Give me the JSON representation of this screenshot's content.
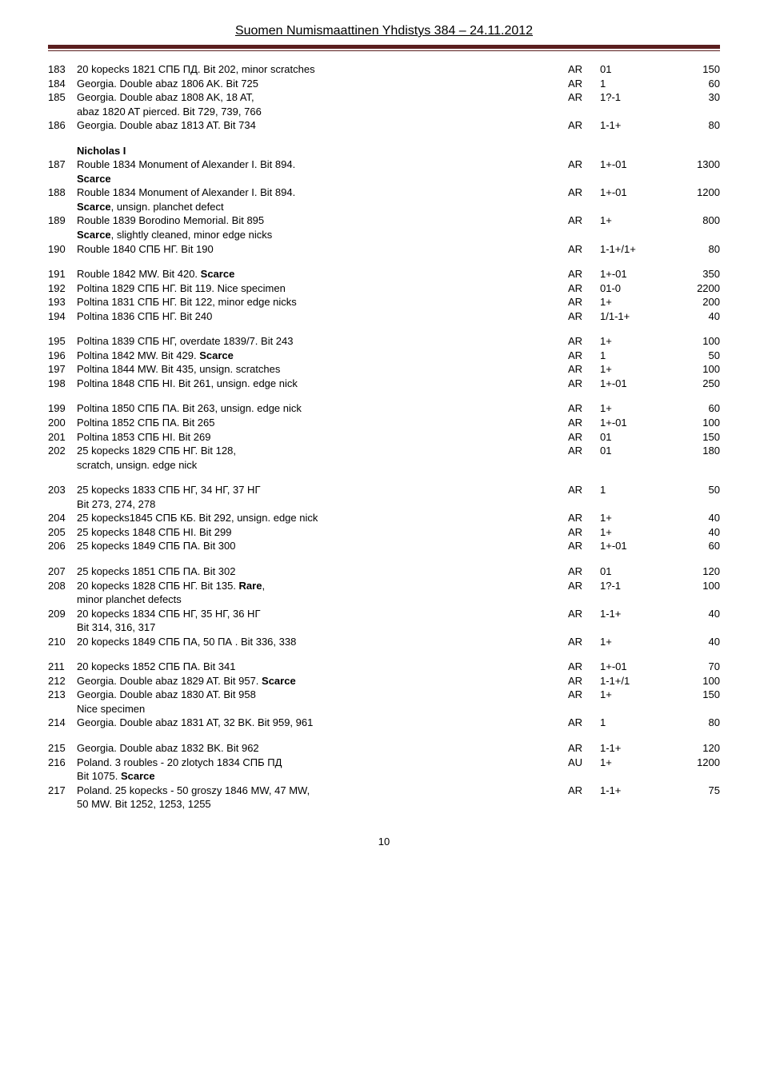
{
  "header": "Suomen Numismaattinen Yhdistys 384 – 24.11.2012",
  "page_number": "10",
  "colors": {
    "bar": "#5b1f1f",
    "text": "#000000",
    "bg": "#ffffff"
  },
  "section_heading": "Nicholas I",
  "rows": [
    {
      "n": "183",
      "d": "20 kopecks 1821 СПБ ПД. Bit 202, minor scratches",
      "m": "AR",
      "g": "01",
      "p": "150"
    },
    {
      "n": "184",
      "d": "Georgia. Double abaz 1806 AK. Bit 725",
      "m": "AR",
      "g": "1",
      "p": "60"
    },
    {
      "n": "185",
      "d": "Georgia. Double abaz 1808 AK, 18 AT,",
      "m": "AR",
      "g": "1?-1",
      "p": "30",
      "d2": "abaz 1820 AT pierced. Bit 729, 739, 766"
    },
    {
      "n": "186",
      "d": "Georgia. Double abaz 1813 AT. Bit 734",
      "m": "AR",
      "g": "1-1+",
      "p": "80"
    },
    {
      "gap": true
    },
    {
      "section": true
    },
    {
      "n": "187",
      "d": "Rouble 1834 Monument of Alexander I. Bit 894.",
      "m": "AR",
      "g": "1+-01",
      "p": "1300",
      "d2_html": "<span class='bold'>Scarce</span>"
    },
    {
      "n": "188",
      "d": "Rouble 1834 Monument of Alexander I. Bit 894.",
      "m": "AR",
      "g": "1+-01",
      "p": "1200",
      "d2_html": "<span class='bold'>Scarce</span>, unsign. planchet defect"
    },
    {
      "n": "189",
      "d": "Rouble 1839 Borodino Memorial. Bit 895",
      "m": "AR",
      "g": "1+",
      "p": "800",
      "d2_html": "<span class='bold'>Scarce</span>, slightly cleaned, minor edge nicks"
    },
    {
      "n": "190",
      "d": "Rouble 1840 СПБ НГ. Bit 190",
      "m": "AR",
      "g": "1-1+/1+",
      "p": "80"
    },
    {
      "gap": true
    },
    {
      "n": "191",
      "d_html": "Rouble 1842 MW. Bit 420. <span class='bold'>Scarce</span>",
      "m": "AR",
      "g": "1+-01",
      "p": "350"
    },
    {
      "n": "192",
      "d": "Poltina 1829 СПБ НГ. Bit 119. Nice specimen",
      "m": "AR",
      "g": "01-0",
      "p": "2200"
    },
    {
      "n": "193",
      "d": "Poltina 1831 СПБ НГ. Bit 122, minor edge nicks",
      "m": "AR",
      "g": "1+",
      "p": "200"
    },
    {
      "n": "194",
      "d": "Poltina 1836 СПБ НГ. Bit 240",
      "m": "AR",
      "g": "1/1-1+",
      "p": "40"
    },
    {
      "gap": true
    },
    {
      "n": "195",
      "d": "Poltina 1839 СПБ НГ, overdate 1839/7. Bit 243",
      "m": "AR",
      "g": "1+",
      "p": "100"
    },
    {
      "n": "196",
      "d_html": "Poltina 1842 MW. Bit 429. <span class='bold'>Scarce</span>",
      "m": "AR",
      "g": "1",
      "p": "50"
    },
    {
      "n": "197",
      "d": "Poltina 1844 MW. Bit 435, unsign. scratches",
      "m": "AR",
      "g": "1+",
      "p": "100"
    },
    {
      "n": "198",
      "d": "Poltina 1848 СПБ НI. Bit 261, unsign. edge nick",
      "m": "AR",
      "g": "1+-01",
      "p": "250"
    },
    {
      "gap": true
    },
    {
      "n": "199",
      "d": "Poltina 1850 СПБ ПА. Bit 263, unsign. edge nick",
      "m": "AR",
      "g": "1+",
      "p": "60"
    },
    {
      "n": "200",
      "d": "Poltina 1852 СПБ ПА. Bit 265",
      "m": "AR",
      "g": "1+-01",
      "p": "100"
    },
    {
      "n": "201",
      "d": "Poltina 1853 СПБ НI. Bit 269",
      "m": "AR",
      "g": "01",
      "p": "150"
    },
    {
      "n": "202",
      "d": "25 kopecks 1829 СПБ НГ. Bit 128,",
      "m": "AR",
      "g": "01",
      "p": "180",
      "d2": "scratch, unsign. edge nick"
    },
    {
      "gap": true
    },
    {
      "n": "203",
      "d": "25 kopecks 1833 СПБ НГ, 34 НГ, 37 НГ",
      "m": "AR",
      "g": "1",
      "p": "50",
      "d2": "Bit 273, 274, 278"
    },
    {
      "n": "204",
      "d": "25 kopecks1845 СПБ КБ. Bit 292, unsign. edge nick",
      "m": "AR",
      "g": "1+",
      "p": "40"
    },
    {
      "n": "205",
      "d": "25 kopecks 1848 СПБ НI. Bit 299",
      "m": "AR",
      "g": "1+",
      "p": "40"
    },
    {
      "n": "206",
      "d": "25 kopecks 1849 СПБ ПА. Bit 300",
      "m": "AR",
      "g": "1+-01",
      "p": "60"
    },
    {
      "gap": true
    },
    {
      "n": "207",
      "d": "25 kopecks 1851 СПБ ПА. Bit 302",
      "m": "AR",
      "g": "01",
      "p": "120"
    },
    {
      "n": "208",
      "d_html": "20 kopecks 1828 СПБ НГ. Bit 135. <span class='bold'>Rare</span>,",
      "m": "AR",
      "g": "1?-1",
      "p": "100",
      "d2": "minor planchet defects"
    },
    {
      "n": "209",
      "d": "20 kopecks 1834 СПБ НГ, 35 НГ, 36 НГ",
      "m": "AR",
      "g": "1-1+",
      "p": "40",
      "d2": "Bit 314, 316, 317"
    },
    {
      "n": "210",
      "d": "20 kopecks 1849 СПБ ПА, 50 ПА . Bit 336, 338",
      "m": "AR",
      "g": "1+",
      "p": "40"
    },
    {
      "gap": true
    },
    {
      "n": "211",
      "d": "20 kopecks 1852 СПБ ПА. Bit 341",
      "m": "AR",
      "g": "1+-01",
      "p": "70"
    },
    {
      "n": "212",
      "d_html": "Georgia. Double abaz 1829 AT. Bit 957. <span class='bold'>Scarce</span>",
      "m": "AR",
      "g": "1-1+/1",
      "p": "100"
    },
    {
      "n": "213",
      "d": "Georgia. Double abaz 1830 AT. Bit 958",
      "m": "AR",
      "g": "1+",
      "p": "150",
      "d2": "Nice specimen"
    },
    {
      "n": "214",
      "d": "Georgia. Double abaz 1831 AT, 32 BK. Bit 959, 961",
      "m": "AR",
      "g": "1",
      "p": "80"
    },
    {
      "gap": true
    },
    {
      "n": "215",
      "d": "Georgia. Double abaz 1832 BK. Bit 962",
      "m": "AR",
      "g": "1-1+",
      "p": "120"
    },
    {
      "n": "216",
      "d": "Poland. 3 roubles - 20 zlotych 1834 СПБ ПД",
      "m": "AU",
      "g": "1+",
      "p": "1200",
      "d2_html": "Bit 1075. <span class='bold'>Scarce</span>"
    },
    {
      "n": "217",
      "d": "Poland. 25 kopecks - 50 groszy 1846 MW, 47 MW,",
      "m": "AR",
      "g": "1-1+",
      "p": "75",
      "d2": "50 MW. Bit 1252, 1253, 1255"
    }
  ]
}
